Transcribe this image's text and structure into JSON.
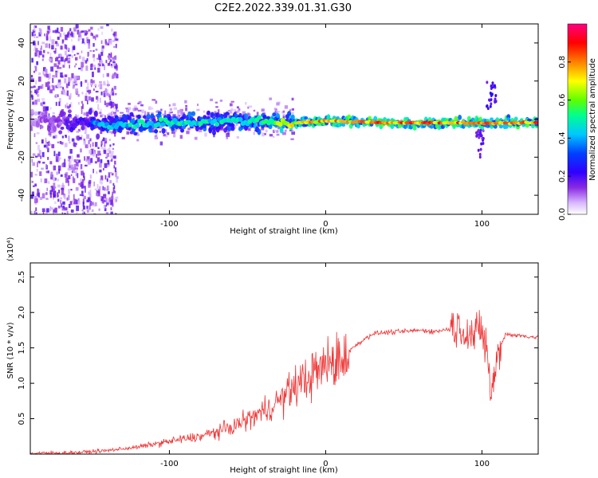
{
  "title": "C2E2.2022.339.01.31.G30",
  "chart_data": [
    {
      "type": "heatmap",
      "name": "spectrogram",
      "xlabel": "Height of straight line (km)",
      "ylabel": "Frequency (Hz)",
      "xlim": [
        -189,
        136
      ],
      "ylim": [
        -50,
        50
      ],
      "x_ticks": [
        -100,
        0,
        100
      ],
      "y_ticks": [
        -40,
        -20,
        0,
        20,
        40
      ],
      "colorbar": {
        "label": "Normalized spectral amplitude",
        "range": [
          0.0,
          1.0
        ],
        "ticks": [
          0.0,
          0.2,
          0.4,
          0.6,
          0.8
        ],
        "colormap": [
          "#ffffff",
          "#e6d0ff",
          "#a060ff",
          "#6a00ff",
          "#0000ff",
          "#00c8ff",
          "#00ff80",
          "#80ff00",
          "#ffff00",
          "#ff8000",
          "#ff0000",
          "#ff0080"
        ]
      },
      "description_ridge": [
        {
          "x": -189,
          "freq": 0,
          "amp": 0.15
        },
        {
          "x": -140,
          "freq": -3,
          "amp": 0.45
        },
        {
          "x": -100,
          "freq": -2,
          "amp": 0.55
        },
        {
          "x": -60,
          "freq": -1,
          "amp": 0.5
        },
        {
          "x": -20,
          "freq": -2,
          "amp": 0.75
        },
        {
          "x": 0,
          "freq": -1,
          "amp": 0.85
        },
        {
          "x": 50,
          "freq": -2,
          "amp": 0.9
        },
        {
          "x": 100,
          "freq": -2,
          "amp": 0.85
        },
        {
          "x": 136,
          "freq": -2,
          "amp": 0.85
        }
      ]
    },
    {
      "type": "line",
      "name": "snr",
      "xlabel": "Height of straight line (km)",
      "ylabel": "SNR (10 * v/v)",
      "y_multiplier": "(x10⁴)",
      "xlim": [
        -189,
        136
      ],
      "ylim": [
        0,
        27000
      ],
      "x_ticks": [
        -100,
        0,
        100
      ],
      "y_ticks": [
        5000,
        10000,
        15000,
        20000,
        25000
      ],
      "y_tick_labels": [
        "0.5",
        "1.0",
        "1.5",
        "2.0",
        "2.5"
      ],
      "color": "#ee3333",
      "series": [
        {
          "name": "SNR",
          "x": [
            -189,
            -160,
            -140,
            -120,
            -100,
            -80,
            -60,
            -40,
            -30,
            -20,
            -10,
            0,
            10,
            15,
            20,
            30,
            40,
            50,
            60,
            70,
            80,
            85,
            90,
            95,
            100,
            103,
            106,
            110,
            115,
            120,
            136
          ],
          "values": [
            100,
            200,
            500,
            1000,
            1800,
            2500,
            3800,
            6000,
            7500,
            9500,
            11000,
            12500,
            13500,
            14500,
            15500,
            17000,
            17200,
            17300,
            17500,
            17300,
            17700,
            18000,
            17500,
            16500,
            17500,
            15000,
            8000,
            14000,
            17000,
            16800,
            16500
          ]
        }
      ]
    }
  ]
}
